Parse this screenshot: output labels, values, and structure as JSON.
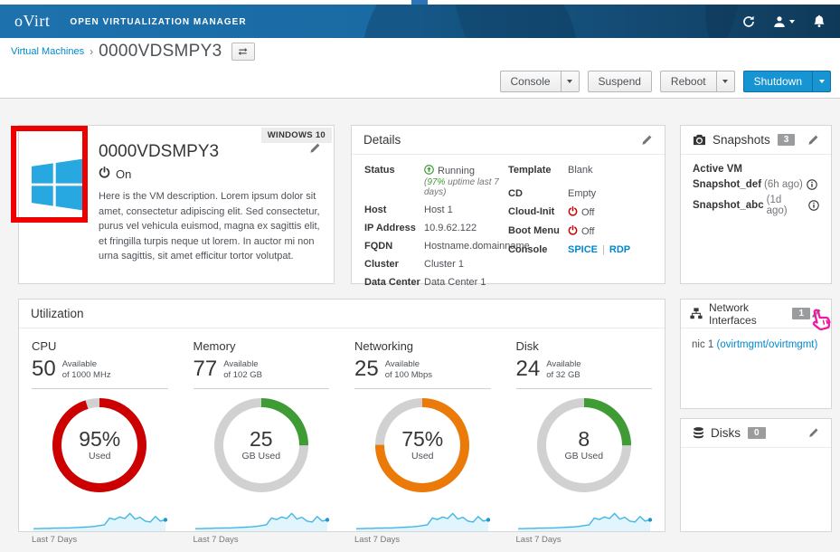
{
  "navbar": {
    "logo": "oVirt",
    "product": "OPEN VIRTUALIZATION MANAGER"
  },
  "breadcrumb": {
    "parent": "Virtual Machines",
    "separator": "›",
    "current": "0000VDSMPY3"
  },
  "actions": {
    "console": "Console",
    "suspend": "Suspend",
    "reboot": "Reboot",
    "shutdown": "Shutdown"
  },
  "vm_card": {
    "os_badge": "WINDOWS 10",
    "name": "0000VDSMPY3",
    "power_state": "On",
    "description": "Here is the VM description. Lorem ipsum dolor sit amet, consectetur adipiscing elit. Sed consectetur, purus vel vehicula euismod, magna ex sagittis elit, et fringilla turpis neque ut lorem. In auctor mi non urna sagittis, sit amet efficitur tortor volutpat."
  },
  "details": {
    "title": "Details",
    "status": {
      "label": "Status",
      "value": "Running",
      "uptime_prefix": "(",
      "uptime_value": "97%",
      "uptime_suffix": " uptime last 7 days)"
    },
    "rows_left": [
      {
        "label": "Host",
        "value": "Host 1"
      },
      {
        "label": "IP Address",
        "value": "10.9.62.122"
      },
      {
        "label": "FQDN",
        "value": "Hostname.domainname"
      },
      {
        "label": "Cluster",
        "value": "Cluster 1"
      },
      {
        "label": "Data Center",
        "value": "Data Center 1"
      }
    ],
    "template": {
      "label": "Template",
      "value": "Blank"
    },
    "cd": {
      "label": "CD",
      "value": "Empty"
    },
    "cloud_init": {
      "label": "Cloud-Init",
      "value": "Off"
    },
    "boot_menu": {
      "label": "Boot Menu",
      "value": "Off"
    },
    "console": {
      "label": "Console",
      "link1": "SPICE",
      "separator": "|",
      "link2": "RDP"
    }
  },
  "snapshots": {
    "title": "Snapshots",
    "count": "3",
    "items": [
      {
        "name": "Active VM",
        "time": ""
      },
      {
        "name": "Snapshot_def",
        "time": "(6h ago)"
      },
      {
        "name": "Snapshot_abc",
        "time": "(1d ago)"
      }
    ]
  },
  "utilization_title": "Utilization",
  "chart_data": {
    "type": "gauge",
    "track_color": "#d1d1d1",
    "gauges": [
      {
        "metric": "CPU",
        "available": "50",
        "available_label": "Available",
        "capacity": "of 1000 MHz",
        "percent_used": 95,
        "center_value": "95%",
        "center_label": "Used",
        "color": "#cc0000",
        "trend_label": "Last 7 Days"
      },
      {
        "metric": "Memory",
        "available": "77",
        "available_label": "Available",
        "capacity": "of 102 GB",
        "percent_used": 25,
        "center_value": "25",
        "center_label": "GB Used",
        "color": "#3f9c35",
        "trend_label": "Last 7 Days"
      },
      {
        "metric": "Networking",
        "available": "25",
        "available_label": "Available",
        "capacity": "of 100 Mbps",
        "percent_used": 75,
        "center_value": "75%",
        "center_label": "Used",
        "color": "#ec7a08",
        "trend_label": "Last 7 Days"
      },
      {
        "metric": "Disk",
        "available": "24",
        "available_label": "Available",
        "capacity": "of 32 GB",
        "percent_used": 25,
        "center_value": "8",
        "center_label": "GB Used",
        "color": "#3f9c35",
        "trend_label": "Last 7 Days"
      }
    ],
    "sparkline": {
      "color": "#41b6e6",
      "fill": "#e3f5fc",
      "values": [
        0.1,
        0.1,
        0.11,
        0.11,
        0.12,
        0.12,
        0.13,
        0.13,
        0.14,
        0.15,
        0.16,
        0.17,
        0.19,
        0.22,
        0.25,
        0.52,
        0.46,
        0.56,
        0.5,
        0.7,
        0.48,
        0.55,
        0.4,
        0.36,
        0.58,
        0.4,
        0.45
      ]
    }
  },
  "network_interfaces": {
    "title": "Network Interfaces",
    "count": "1",
    "nic_name": "nic 1 ",
    "nic_link": "(ovirtmgmt/ovirtmgmt)"
  },
  "disks": {
    "title": "Disks",
    "count": "0"
  },
  "colors": {
    "accent": "#0088ce",
    "status_on": "#3f9c35",
    "status_off": "#cc0000",
    "annotation": "#ee0000",
    "cursor_annotation": "#ef18a3"
  }
}
